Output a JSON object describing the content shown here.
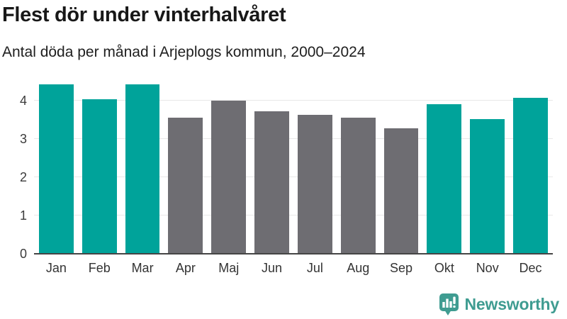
{
  "header": {
    "title": "Flest dör under vinterhalvåret",
    "subtitle": "Antal döda per månad i Arjeplogs kommun, 2000–2024"
  },
  "chart_data": {
    "type": "bar",
    "title": "Flest dör under vinterhalvåret",
    "subtitle": "Antal döda per månad i Arjeplogs kommun, 2000–2024",
    "categories": [
      "Jan",
      "Feb",
      "Mar",
      "Apr",
      "Maj",
      "Jun",
      "Jul",
      "Aug",
      "Sep",
      "Okt",
      "Nov",
      "Dec"
    ],
    "values": [
      4.44,
      4.04,
      4.44,
      3.56,
      4.0,
      3.72,
      3.64,
      3.56,
      3.28,
      3.92,
      3.52,
      4.08
    ],
    "bar_colors": [
      "#00A39A",
      "#00A39A",
      "#00A39A",
      "#6E6D72",
      "#6E6D72",
      "#6E6D72",
      "#6E6D72",
      "#6E6D72",
      "#6E6D72",
      "#00A39A",
      "#00A39A",
      "#00A39A"
    ],
    "highlight_color": "#00A39A",
    "muted_color": "#6E6D72",
    "yticks": [
      0,
      1,
      2,
      3,
      4
    ],
    "ylim": [
      0,
      4.6
    ],
    "grid": "horizontal",
    "legend": "none",
    "xlabel": "",
    "ylabel": ""
  },
  "footer": {
    "brand": "Newsworthy",
    "brand_color": "#3F9C91"
  }
}
